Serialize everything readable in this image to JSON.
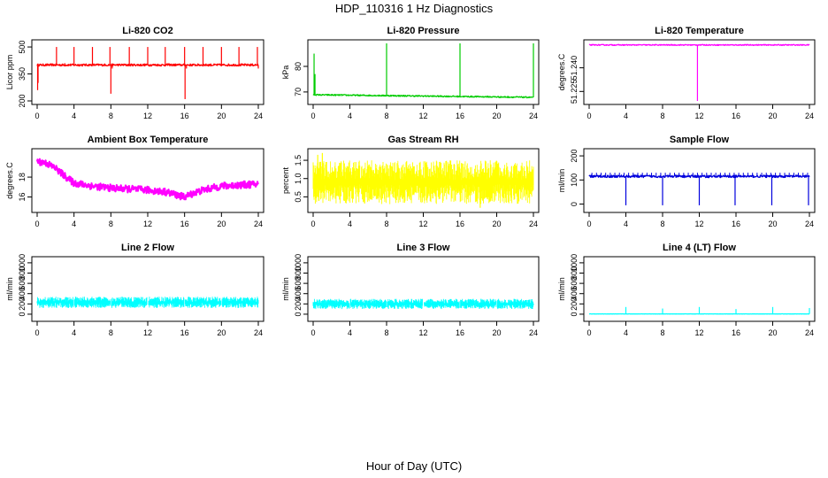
{
  "figure": {
    "title": "HDP_110316  1 Hz Diagnostics",
    "xlabel": "Hour of Day (UTC)"
  },
  "chart_data": [
    {
      "type": "line",
      "title": "Li-820 CO2",
      "ylabel": "Licor ppm",
      "color": "#ff0000",
      "xticks": [
        "0",
        "4",
        "8",
        "12",
        "16",
        "20",
        "24"
      ],
      "xlim": [
        0,
        24
      ],
      "yticks": [
        "200",
        "350",
        "500"
      ],
      "ytick_values": [
        200,
        350,
        500
      ],
      "ylim": [
        200,
        520
      ],
      "series": [
        {
          "name": "CO2",
          "base": 400,
          "noise": 6,
          "spikes": [
            [
              0.05,
              260
            ],
            [
              0.1,
              300
            ],
            [
              2.1,
              500
            ],
            [
              3.0,
              410
            ],
            [
              4.0,
              500
            ],
            [
              6.0,
              500
            ],
            [
              7.9,
              500
            ],
            [
              8.0,
              240
            ],
            [
              8.15,
              380
            ],
            [
              10.0,
              500
            ],
            [
              12.0,
              500
            ],
            [
              13.9,
              500
            ],
            [
              14.2,
              410
            ],
            [
              16.0,
              500
            ],
            [
              16.05,
              210
            ],
            [
              16.2,
              380
            ],
            [
              18.0,
              500
            ],
            [
              20.0,
              500
            ],
            [
              21.9,
              500
            ],
            [
              23.9,
              500
            ],
            [
              24.0,
              380
            ]
          ]
        }
      ]
    },
    {
      "type": "line",
      "title": "Li-820 Pressure",
      "ylabel": "kPa",
      "color": "#00cc00",
      "xticks": [
        "0",
        "4",
        "8",
        "12",
        "16",
        "20",
        "24"
      ],
      "xlim": [
        0,
        24
      ],
      "yticks": [
        "70",
        "80"
      ],
      "ytick_values": [
        70,
        80
      ],
      "ylim": [
        66.5,
        89
      ],
      "series": [
        {
          "name": "Pressure",
          "start": 68.9,
          "end": 67.9,
          "noise": 0.25,
          "spikes": [
            [
              0.1,
              85
            ],
            [
              0.2,
              77
            ],
            [
              8.0,
              89
            ],
            [
              16.0,
              89
            ],
            [
              24.0,
              89
            ]
          ]
        }
      ]
    },
    {
      "type": "line",
      "title": "Li-820 Temperature",
      "ylabel": "degrees.C",
      "color": "#ff00ff",
      "xticks": [
        "0",
        "4",
        "8",
        "12",
        "16",
        "20",
        "24"
      ],
      "xlim": [
        0,
        24
      ],
      "yticks": [
        "51.225",
        "51.240"
      ],
      "ytick_values": [
        51.225,
        51.24
      ],
      "ylim": [
        51.219,
        51.2555
      ],
      "series": [
        {
          "name": "Temperature",
          "base": 51.2545,
          "noise": 0.0003,
          "spikes": [
            [
              11.8,
              51.219
            ]
          ]
        }
      ]
    },
    {
      "type": "line",
      "title": "Ambient Box Temperature",
      "ylabel": "degrees.C",
      "color": "#ff00ff",
      "xticks": [
        "0",
        "4",
        "8",
        "12",
        "16",
        "20",
        "24"
      ],
      "xlim": [
        0,
        24
      ],
      "yticks": [
        "16",
        "18"
      ],
      "ytick_values": [
        16,
        18
      ],
      "ylim": [
        14.8,
        20.5
      ],
      "series": [
        {
          "name": "Box temp",
          "noise": 0.35,
          "x": [
            0,
            1,
            2,
            3,
            4,
            6,
            8,
            10,
            12,
            14,
            15.5,
            16,
            17,
            18,
            19,
            20,
            22,
            24
          ],
          "y": [
            19.6,
            19.4,
            18.9,
            18.1,
            17.4,
            17.1,
            16.9,
            16.8,
            16.7,
            16.5,
            16.1,
            16.0,
            16.4,
            16.7,
            16.9,
            17.1,
            17.2,
            17.3
          ]
        }
      ]
    },
    {
      "type": "line",
      "title": "Gas Stream RH",
      "ylabel": "percent",
      "color": "#ffff00",
      "xticks": [
        "0",
        "4",
        "8",
        "12",
        "16",
        "20",
        "24"
      ],
      "xlim": [
        0,
        24
      ],
      "yticks": [
        "0.5",
        "1.0",
        "1.5"
      ],
      "ytick_values": [
        0.5,
        1.0,
        1.5
      ],
      "ylim": [
        0.17,
        1.72
      ],
      "series": [
        {
          "name": "RH",
          "band": [
            0.3,
            1.5
          ],
          "spikes": [
            [
              0.5,
              1.65
            ],
            [
              1.0,
              1.7
            ],
            [
              18.2,
              0.2
            ]
          ]
        }
      ]
    },
    {
      "type": "line",
      "title": "Sample Flow",
      "ylabel": "ml/min",
      "color": "#0000dd",
      "xticks": [
        "0",
        "4",
        "8",
        "12",
        "16",
        "20",
        "24"
      ],
      "xlim": [
        0,
        24
      ],
      "yticks": [
        "0",
        "100",
        "200"
      ],
      "ytick_values": [
        0,
        100,
        200
      ],
      "ylim": [
        -20,
        215
      ],
      "series": [
        {
          "name": "Sample flow",
          "base": 115,
          "noise": 5,
          "dash_top": 130,
          "spikes": [
            [
              4.0,
              -5
            ],
            [
              8.0,
              -5
            ],
            [
              12.0,
              -5
            ],
            [
              15.9,
              -5
            ],
            [
              19.9,
              -5
            ],
            [
              23.9,
              -5
            ]
          ]
        }
      ]
    },
    {
      "type": "line",
      "title": "Line 2 Flow",
      "ylabel": "ml/min",
      "color": "#00ffff",
      "xticks": [
        "0",
        "4",
        "8",
        "12",
        "16",
        "20",
        "24"
      ],
      "xlim": [
        0,
        24
      ],
      "yticks": [
        "0",
        "200",
        "400",
        "600",
        "800",
        "1000"
      ],
      "ytick_values": [
        0,
        200,
        400,
        600,
        800,
        1000
      ],
      "ylim": [
        -70,
        1050
      ],
      "series": [
        {
          "name": "Line 2",
          "band": [
            120,
            340
          ],
          "gaps": [
            4,
            8,
            12,
            16,
            20
          ]
        }
      ]
    },
    {
      "type": "line",
      "title": "Line 3 Flow",
      "ylabel": "ml/min",
      "color": "#00ffff",
      "xticks": [
        "0",
        "4",
        "8",
        "12",
        "16",
        "20",
        "24"
      ],
      "xlim": [
        0,
        24
      ],
      "yticks": [
        "0",
        "200",
        "400",
        "600",
        "800",
        "1000"
      ],
      "ytick_values": [
        0,
        200,
        400,
        600,
        800,
        1000
      ],
      "ylim": [
        -70,
        1050
      ],
      "series": [
        {
          "name": "Line 3",
          "band": [
            100,
            300
          ],
          "gaps": [
            4,
            8,
            12,
            16,
            20
          ]
        }
      ]
    },
    {
      "type": "line",
      "title": "Line 4 (LT) Flow",
      "ylabel": "ml/min",
      "color": "#00ffff",
      "xticks": [
        "0",
        "4",
        "8",
        "12",
        "16",
        "20",
        "24"
      ],
      "xlim": [
        0,
        24
      ],
      "yticks": [
        "0",
        "200",
        "400",
        "600",
        "800",
        "1000"
      ],
      "ytick_values": [
        0,
        200,
        400,
        600,
        800,
        1000
      ],
      "ylim": [
        -70,
        1050
      ],
      "series": [
        {
          "name": "Line 4",
          "base": 5,
          "noise": 2,
          "spikes": [
            [
              4.0,
              140
            ],
            [
              8.0,
              110
            ],
            [
              12.0,
              140
            ],
            [
              16.0,
              100
            ],
            [
              20.0,
              140
            ],
            [
              24.0,
              120
            ]
          ]
        }
      ]
    }
  ]
}
